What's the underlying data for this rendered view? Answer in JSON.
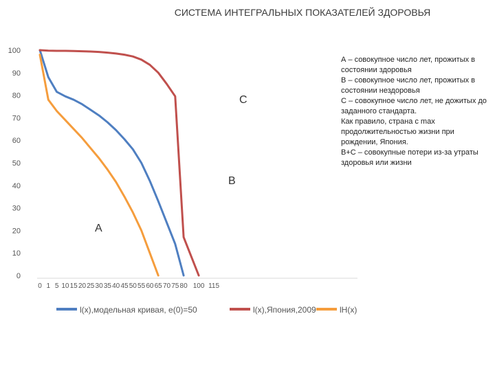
{
  "title": "СИСТЕМА ИНТЕГРАЛЬНЫХ ПОКАЗАТЕЛЕЙ ЗДОРОВЬЯ",
  "notes": [
    "А – совокупное число лет, прожитых в состоянии здоровья",
    "В – совокупное число лет, прожитых в состоянии нездоровья",
    "С – совокупное число лет, не дожитых до заданного стандарта.",
    "Как правило, страна с max продолжительностью жизни при рождении, Япония.",
    "В+С – совокупные потери из-за утраты здоровья или жизни"
  ],
  "colors": {
    "blue": "#4f7fc1",
    "red": "#c0504d",
    "orange": "#f59d3d",
    "axis": "#d9d9d9",
    "text": "#555555"
  },
  "chart_data": {
    "type": "line",
    "title": "",
    "xlabel": "",
    "ylabel": "",
    "ylim": [
      0,
      100
    ],
    "yticks": [
      0,
      10,
      20,
      30,
      40,
      50,
      60,
      70,
      80,
      90,
      100
    ],
    "x_categories": [
      "0",
      "1",
      "5",
      "10",
      "15",
      "20",
      "25",
      "30",
      "35",
      "40",
      "45",
      "50",
      "55",
      "60",
      "65",
      "70",
      "75",
      "80",
      "100",
      "115"
    ],
    "area_labels": [
      "A",
      "B",
      "C"
    ],
    "series": [
      {
        "name": "l(x),модельная кривая, e(0)=50",
        "color": "#4f7fc1",
        "values": [
          100,
          88,
          81.5,
          79.5,
          78,
          76,
          73.5,
          71,
          68,
          64.5,
          60.5,
          56,
          50,
          42,
          33,
          23.5,
          14,
          0,
          null,
          null
        ]
      },
      {
        "name": "l(x),Япония,2009",
        "color": "#c0504d",
        "values": [
          100,
          99.8,
          99.7,
          99.7,
          99.6,
          99.5,
          99.4,
          99.2,
          98.9,
          98.5,
          98,
          97.2,
          95.8,
          93.5,
          90,
          85,
          79.5,
          17,
          0,
          null
        ]
      },
      {
        "name": "lH(x)",
        "color": "#f59d3d",
        "values": [
          98,
          78,
          73,
          69,
          65,
          61,
          56.5,
          52,
          47,
          41.5,
          35,
          28,
          20,
          10,
          0,
          null,
          null,
          null,
          null,
          null
        ]
      }
    ]
  }
}
